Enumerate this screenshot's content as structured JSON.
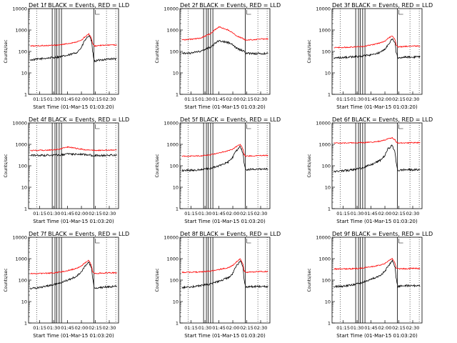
{
  "figure": {
    "ylabel": "Counts/sec",
    "xlabel": "Start Time (01-Mar-15 01:03:20)",
    "x_tick_labels": [
      "01:15",
      "01:30",
      "01:45",
      "02:00",
      "02:15",
      "02:30"
    ],
    "y_tick_labels": [
      "1",
      "10",
      "100",
      "1000",
      "10000"
    ],
    "colors": {
      "events": "#000000",
      "lld": "#ff0000",
      "axes": "#000000",
      "background": "#ffffff"
    }
  },
  "chart_data": [
    {
      "type": "line",
      "title": "Det 1f BLACK = Events, RED = LLD",
      "xlabel": "Start Time (01-Mar-15 01:03:20)",
      "ylabel": "Counts/sec",
      "xlim": [
        "01:03",
        "02:40"
      ],
      "ylim": [
        1,
        10000
      ],
      "yscale": "log",
      "x": [
        "01:05",
        "01:15",
        "01:25",
        "01:35",
        "01:45",
        "01:55",
        "02:00",
        "02:03",
        "02:08",
        "02:11",
        "02:12",
        "02:14",
        "02:20",
        "02:30",
        "02:38"
      ],
      "series": [
        {
          "name": "Events",
          "values": [
            40,
            45,
            50,
            55,
            65,
            90,
            150,
            300,
            550,
            300,
            100,
            35,
            40,
            45,
            45
          ]
        },
        {
          "name": "LLD",
          "values": [
            180,
            185,
            190,
            200,
            230,
            280,
            330,
            450,
            650,
            400,
            230,
            180,
            190,
            200,
            200
          ]
        }
      ]
    },
    {
      "type": "line",
      "title": "Det 2f BLACK = Events, RED = LLD",
      "xlabel": "Start Time (01-Mar-15 01:03:20)",
      "ylabel": "Counts/sec",
      "xlim": [
        "01:03",
        "02:40"
      ],
      "ylim": [
        1,
        10000
      ],
      "yscale": "log",
      "x": [
        "01:05",
        "01:15",
        "01:25",
        "01:35",
        "01:45",
        "01:55",
        "02:00",
        "02:03",
        "02:08",
        "02:11",
        "02:12",
        "02:14",
        "02:20",
        "02:30",
        "02:38"
      ],
      "series": [
        {
          "name": "Events",
          "values": [
            80,
            85,
            100,
            150,
            320,
            260,
            200,
            150,
            120,
            110,
            100,
            85,
            80,
            80,
            80
          ]
        },
        {
          "name": "LLD",
          "values": [
            350,
            370,
            420,
            650,
            1400,
            1000,
            750,
            550,
            450,
            400,
            370,
            340,
            350,
            380,
            380
          ]
        }
      ]
    },
    {
      "type": "line",
      "title": "Det 3f BLACK = Events, RED = LLD",
      "xlabel": "Start Time (01-Mar-15 01:03:20)",
      "ylabel": "Counts/sec",
      "xlim": [
        "01:03",
        "02:40"
      ],
      "ylim": [
        1,
        10000
      ],
      "yscale": "log",
      "x": [
        "01:05",
        "01:15",
        "01:25",
        "01:35",
        "01:45",
        "01:55",
        "02:00",
        "02:03",
        "02:08",
        "02:11",
        "02:12",
        "02:14",
        "02:20",
        "02:30",
        "02:38"
      ],
      "series": [
        {
          "name": "Events",
          "values": [
            50,
            52,
            55,
            60,
            70,
            90,
            130,
            200,
            400,
            250,
            100,
            50,
            55,
            55,
            55
          ]
        },
        {
          "name": "LLD",
          "values": [
            150,
            155,
            160,
            170,
            200,
            250,
            300,
            400,
            550,
            350,
            200,
            160,
            170,
            180,
            180
          ]
        }
      ]
    },
    {
      "type": "line",
      "title": "Det 4f BLACK = Events, RED = LLD",
      "xlabel": "Start Time (01-Mar-15 01:03:20)",
      "ylabel": "Counts/sec",
      "xlim": [
        "01:03",
        "02:40"
      ],
      "ylim": [
        1,
        10000
      ],
      "yscale": "log",
      "x": [
        "01:05",
        "01:15",
        "01:25",
        "01:35",
        "01:45",
        "01:55",
        "02:00",
        "02:03",
        "02:08",
        "02:11",
        "02:12",
        "02:14",
        "02:20",
        "02:30",
        "02:38"
      ],
      "series": [
        {
          "name": "Events",
          "values": [
            300,
            305,
            310,
            320,
            350,
            350,
            340,
            330,
            320,
            310,
            300,
            300,
            300,
            310,
            310
          ]
        },
        {
          "name": "LLD",
          "values": [
            520,
            530,
            540,
            580,
            750,
            650,
            600,
            560,
            550,
            540,
            530,
            520,
            530,
            540,
            540
          ]
        }
      ]
    },
    {
      "type": "line",
      "title": "Det 5f BLACK = Events, RED = LLD",
      "xlabel": "Start Time (01-Mar-15 01:03:20)",
      "ylabel": "Counts/sec",
      "xlim": [
        "01:03",
        "02:40"
      ],
      "ylim": [
        1,
        10000
      ],
      "yscale": "log",
      "x": [
        "01:05",
        "01:15",
        "01:25",
        "01:35",
        "01:45",
        "01:55",
        "02:00",
        "02:03",
        "02:08",
        "02:11",
        "02:12",
        "02:14",
        "02:20",
        "02:30",
        "02:38"
      ],
      "series": [
        {
          "name": "Events",
          "values": [
            60,
            62,
            65,
            75,
            100,
            150,
            250,
            450,
            800,
            400,
            150,
            65,
            70,
            70,
            70
          ]
        },
        {
          "name": "LLD",
          "values": [
            280,
            285,
            290,
            320,
            400,
            500,
            600,
            750,
            1000,
            600,
            350,
            280,
            290,
            300,
            300
          ]
        }
      ]
    },
    {
      "type": "line",
      "title": "Det 6f BLACK = Events, RED = LLD",
      "xlabel": "Start Time (01-Mar-15 01:03:20)",
      "ylabel": "Counts/sec",
      "xlim": [
        "01:03",
        "02:40"
      ],
      "ylim": [
        1,
        10000
      ],
      "yscale": "log",
      "x": [
        "01:05",
        "01:15",
        "01:25",
        "01:35",
        "01:45",
        "01:55",
        "02:00",
        "02:03",
        "02:08",
        "02:11",
        "02:12",
        "02:14",
        "02:20",
        "02:30",
        "02:38"
      ],
      "series": [
        {
          "name": "Events",
          "values": [
            55,
            58,
            65,
            80,
            110,
            180,
            300,
            600,
            900,
            400,
            150,
            60,
            65,
            65,
            65
          ]
        },
        {
          "name": "LLD",
          "values": [
            1150,
            1150,
            1160,
            1200,
            1250,
            1400,
            1600,
            1850,
            2000,
            1600,
            1300,
            1150,
            1150,
            1200,
            1200
          ]
        }
      ]
    },
    {
      "type": "line",
      "title": "Det 7f BLACK = Events, RED = LLD",
      "xlabel": "Start Time (01-Mar-15 01:03:20)",
      "ylabel": "Counts/sec",
      "xlim": [
        "01:03",
        "02:40"
      ],
      "ylim": [
        1,
        10000
      ],
      "yscale": "log",
      "x": [
        "01:05",
        "01:15",
        "01:25",
        "01:35",
        "01:45",
        "01:55",
        "02:00",
        "02:03",
        "02:08",
        "02:11",
        "02:12",
        "02:14",
        "02:20",
        "02:30",
        "02:38"
      ],
      "series": [
        {
          "name": "Events",
          "values": [
            40,
            45,
            55,
            70,
            100,
            150,
            250,
            400,
            700,
            350,
            120,
            40,
            45,
            50,
            50
          ]
        },
        {
          "name": "LLD",
          "values": [
            200,
            205,
            210,
            230,
            280,
            350,
            450,
            600,
            850,
            450,
            250,
            200,
            210,
            220,
            220
          ]
        }
      ]
    },
    {
      "type": "line",
      "title": "Det 8f BLACK = Events, RED = LLD",
      "xlabel": "Start Time (01-Mar-15 01:03:20)",
      "ylabel": "Counts/sec",
      "xlim": [
        "01:03",
        "02:40"
      ],
      "ylim": [
        1,
        10000
      ],
      "yscale": "log",
      "x": [
        "01:05",
        "01:15",
        "01:25",
        "01:35",
        "01:45",
        "01:55",
        "02:00",
        "02:03",
        "02:08",
        "02:11",
        "02:12",
        "02:14",
        "02:20",
        "02:30",
        "02:38"
      ],
      "series": [
        {
          "name": "Events",
          "values": [
            45,
            48,
            55,
            65,
            90,
            130,
            200,
            400,
            800,
            400,
            120,
            45,
            50,
            50,
            50
          ]
        },
        {
          "name": "LLD",
          "values": [
            230,
            235,
            240,
            260,
            310,
            380,
            480,
            650,
            1000,
            550,
            280,
            230,
            240,
            250,
            250
          ]
        }
      ]
    },
    {
      "type": "line",
      "title": "Det 9f BLACK = Events, RED = LLD",
      "xlabel": "Start Time (01-Mar-15 01:03:20)",
      "ylabel": "Counts/sec",
      "xlim": [
        "01:03",
        "02:40"
      ],
      "ylim": [
        1,
        10000
      ],
      "yscale": "log",
      "x": [
        "01:05",
        "01:15",
        "01:25",
        "01:35",
        "01:45",
        "01:55",
        "02:00",
        "02:03",
        "02:08",
        "02:11",
        "02:12",
        "02:14",
        "02:20",
        "02:30",
        "02:38"
      ],
      "series": [
        {
          "name": "Events",
          "values": [
            50,
            52,
            60,
            75,
            110,
            160,
            260,
            420,
            800,
            400,
            130,
            50,
            55,
            55,
            55
          ]
        },
        {
          "name": "LLD",
          "values": [
            330,
            335,
            340,
            360,
            420,
            500,
            600,
            750,
            1000,
            600,
            370,
            330,
            340,
            350,
            350
          ]
        }
      ]
    }
  ]
}
